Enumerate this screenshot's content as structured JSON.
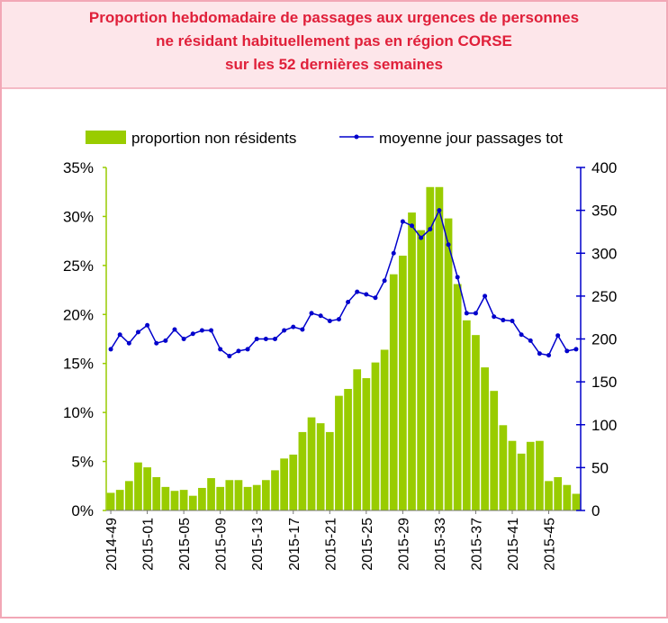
{
  "chart_data": {
    "type": "bar_line",
    "title": [
      "Proportion hebdomadaire de passages aux urgences de personnes",
      "ne résidant habituellement pas en région CORSE",
      "sur les 52 dernières semaines"
    ],
    "categories": [
      "2014-49",
      null,
      null,
      null,
      "2015-01",
      null,
      null,
      null,
      "2015-05",
      null,
      null,
      null,
      "2015-09",
      null,
      null,
      null,
      "2015-13",
      null,
      null,
      null,
      "2015-17",
      null,
      null,
      null,
      "2015-21",
      null,
      null,
      null,
      "2015-25",
      null,
      null,
      null,
      "2015-29",
      null,
      null,
      null,
      "2015-33",
      null,
      null,
      null,
      "2015-37",
      null,
      null,
      null,
      "2015-41",
      null,
      null,
      null,
      "2015-45",
      null,
      null,
      null
    ],
    "series": [
      {
        "name": "proportion non résidents",
        "color": "#99cc00",
        "type": "bar",
        "values": [
          1.8,
          2.1,
          3.0,
          4.9,
          4.4,
          3.4,
          2.4,
          2.0,
          2.1,
          1.5,
          2.3,
          3.3,
          2.4,
          3.1,
          3.1,
          2.4,
          2.6,
          3.1,
          4.1,
          5.3,
          5.7,
          8.0,
          9.5,
          8.9,
          8.0,
          11.7,
          12.4,
          14.4,
          13.5,
          15.1,
          16.4,
          24.1,
          26.0,
          30.4,
          28.6,
          33.0,
          33.0,
          29.8,
          23.1,
          19.4,
          17.9,
          14.6,
          12.2,
          8.7,
          7.1,
          5.8,
          7.0,
          7.1,
          3.0,
          3.4,
          2.6,
          1.7
        ]
      },
      {
        "name": "moyenne jour passages tot",
        "color": "#0000cc",
        "type": "line",
        "axis": "y2",
        "values": [
          188,
          205,
          195,
          208,
          216,
          195,
          198,
          211,
          200,
          206,
          210,
          210,
          188,
          180,
          186,
          188,
          200,
          200,
          200,
          210,
          214,
          211,
          230,
          227,
          221,
          223,
          243,
          255,
          252,
          248,
          268,
          300,
          337,
          332,
          318,
          328,
          350,
          310,
          272,
          230,
          230,
          250,
          226,
          222,
          221,
          205,
          198,
          183,
          181,
          204,
          186,
          188
        ]
      }
    ],
    "ylim": [
      0,
      35
    ],
    "yticks": [
      {
        "value": 0,
        "label": "0%"
      },
      {
        "value": 5,
        "label": "5%"
      },
      {
        "value": 10,
        "label": "10%"
      },
      {
        "value": 15,
        "label": "15%"
      },
      {
        "value": 20,
        "label": "20%"
      },
      {
        "value": 25,
        "label": "25%"
      },
      {
        "value": 30,
        "label": "30%"
      },
      {
        "value": 35,
        "label": "35%"
      }
    ],
    "y2lim": [
      0,
      400
    ],
    "y2ticks": [
      0,
      50,
      100,
      150,
      200,
      250,
      300,
      350,
      400
    ],
    "legend": "top"
  }
}
